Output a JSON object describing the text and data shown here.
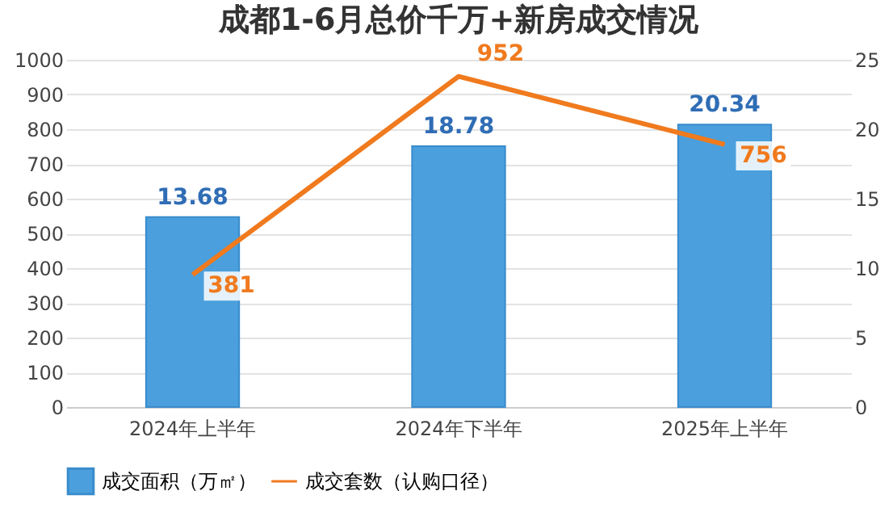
{
  "chart_data": {
    "type": "bar",
    "title": "成都1-6月总价千万+新房成交情况",
    "categories": [
      "2024年上半年",
      "2024年下半年",
      "2025年上半年"
    ],
    "series": [
      {
        "name": "成交面积（万㎡）",
        "axis": "y2",
        "color": "#4a9fdc",
        "values": [
          13.68,
          18.78,
          20.34
        ]
      },
      {
        "name": "成交套数（认购口径）",
        "type": "line",
        "color": "#f07a1e",
        "values": [
          381,
          952,
          756
        ]
      }
    ],
    "ylim": [
      0,
      1000
    ],
    "yticks": [
      0,
      100,
      200,
      300,
      400,
      500,
      600,
      700,
      800,
      900,
      1000
    ],
    "y2lim": [
      0,
      25
    ],
    "y2ticks": [
      0,
      5,
      10,
      15,
      20,
      25
    ],
    "grid": "y",
    "legend": "bottom",
    "data_labels": true,
    "marker": "none",
    "line_style": "solid"
  }
}
